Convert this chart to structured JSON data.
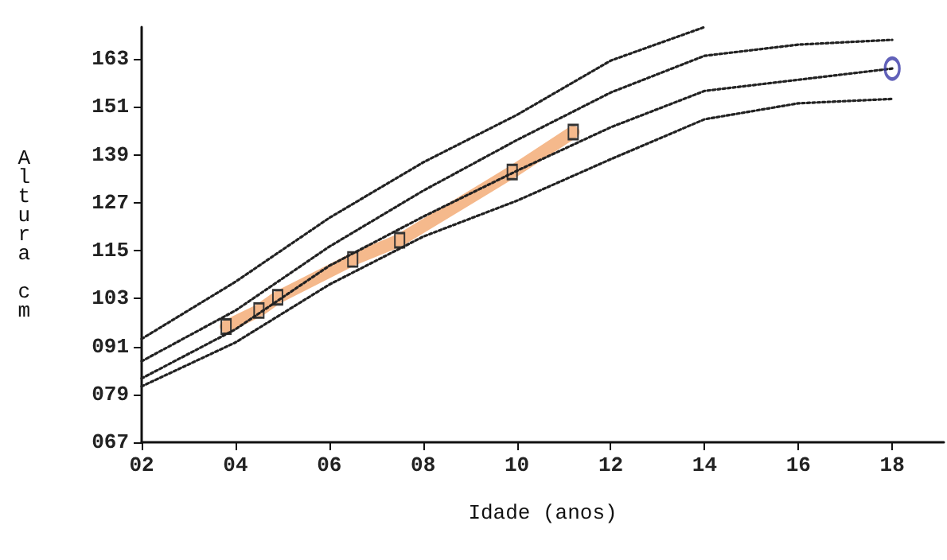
{
  "chart_data": {
    "type": "line",
    "xlabel": "Idade (anos)",
    "ylabel": "Altura cm",
    "xlim": [
      2,
      19.1
    ],
    "ylim": [
      67,
      171
    ],
    "xticks": [
      {
        "value": 2,
        "label": "02"
      },
      {
        "value": 4,
        "label": "04"
      },
      {
        "value": 6,
        "label": "06"
      },
      {
        "value": 8,
        "label": "08"
      },
      10,
      12,
      14,
      16,
      18
    ],
    "yticks": [
      {
        "value": 67,
        "label": "067"
      },
      {
        "value": 79,
        "label": "079"
      },
      {
        "value": 91,
        "label": "091"
      },
      103,
      115,
      127,
      139,
      151,
      163
    ],
    "grid": false,
    "series": [
      {
        "color": "#222222",
        "line_style": "dotted",
        "marker": "none",
        "x": [
          2,
          4,
          6,
          8,
          10,
          12,
          14
        ],
        "values": [
          92.9,
          107.2,
          123.2,
          137.1,
          149,
          162.6,
          171
        ]
      },
      {
        "color": "#222222",
        "line_style": "dotted",
        "marker": "none",
        "x": [
          2,
          4,
          6,
          8,
          10,
          12,
          14,
          16,
          18
        ],
        "values": [
          87.3,
          100,
          116,
          130,
          142.7,
          154.6,
          163.8,
          166.6,
          167.8
        ]
      },
      {
        "color": "#222222",
        "line_style": "dotted",
        "marker": "none",
        "x": [
          2,
          4,
          6,
          8,
          10,
          12,
          14,
          16,
          18
        ],
        "values": [
          83,
          95.3,
          111.2,
          123.5,
          135,
          145.9,
          155,
          157.8,
          160.6
        ]
      },
      {
        "color": "#222222",
        "line_style": "dotted",
        "marker": "none",
        "x": [
          2,
          4,
          6,
          8,
          10,
          12,
          14,
          16,
          18
        ],
        "values": [
          81,
          92,
          106.5,
          118.5,
          127.5,
          137.9,
          147.9,
          151.9,
          153
        ]
      },
      {
        "color": "#f5b98c",
        "line_style": "solid",
        "marker": "square",
        "x": [
          3.8,
          4.5,
          4.9,
          6.5,
          7.5,
          9.9,
          11.2
        ],
        "values": [
          96,
          100,
          103.3,
          112.8,
          117.6,
          134.7,
          144.7
        ]
      },
      {
        "type": "scatter",
        "color": "#3a3aa8",
        "marker": "circle",
        "x": [
          18
        ],
        "values": [
          160.6
        ]
      }
    ]
  }
}
